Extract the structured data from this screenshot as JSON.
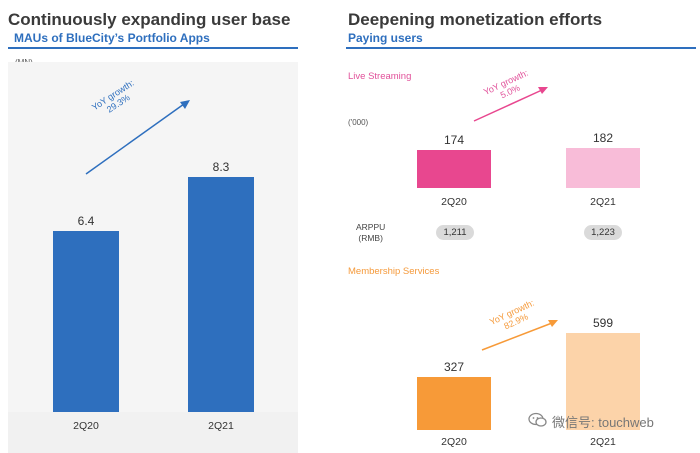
{
  "left": {
    "title": "Continuously expanding user base",
    "subtitle": "MAUs of BlueCity’s Portfolio Apps",
    "unit": "(MN)",
    "growth_label": "YoY growth:\n29.3%"
  },
  "right": {
    "title": "Deepening monetization efforts",
    "subtitle": "Paying users",
    "unit": "('000)",
    "live": {
      "label": "Live Streaming",
      "growth_label": "YoY growth:\n5.0%",
      "arppu_label": "ARPPU\n(RMB)",
      "arppu": [
        "1,211",
        "1,223"
      ]
    },
    "membership": {
      "label": "Membership Services",
      "growth_label": "YoY growth:\n82.9%"
    }
  },
  "watermark": "微信号: touchweb",
  "colors": {
    "blue": "#2e6fbe",
    "pink_dark": "#e8478f",
    "pink_light": "#f8bcd8",
    "orange_dark": "#f79a38",
    "orange_light": "#fcd3a9",
    "pink_text": "#e1519a",
    "orange_text": "#f59a3b"
  },
  "chart_data": [
    {
      "type": "bar",
      "title": "MAUs of BlueCity’s Portfolio Apps",
      "ylabel": "(MN)",
      "categories": [
        "2Q20",
        "2Q21"
      ],
      "values": [
        6.4,
        8.3
      ],
      "value_labels": [
        "6.4",
        "8.3"
      ],
      "annotation": "YoY growth: 29.3%"
    },
    {
      "type": "bar",
      "title": "Live Streaming",
      "ylabel": "('000)",
      "categories": [
        "2Q20",
        "2Q21"
      ],
      "values": [
        174,
        182
      ],
      "value_labels": [
        "174",
        "182"
      ],
      "annotation": "YoY growth: 5.0%"
    },
    {
      "type": "bar",
      "title": "Membership Services",
      "ylabel": "('000)",
      "categories": [
        "2Q20",
        "2Q21"
      ],
      "values": [
        327,
        599
      ],
      "value_labels": [
        "327",
        "599"
      ],
      "annotation": "YoY growth: 82.9%"
    }
  ]
}
